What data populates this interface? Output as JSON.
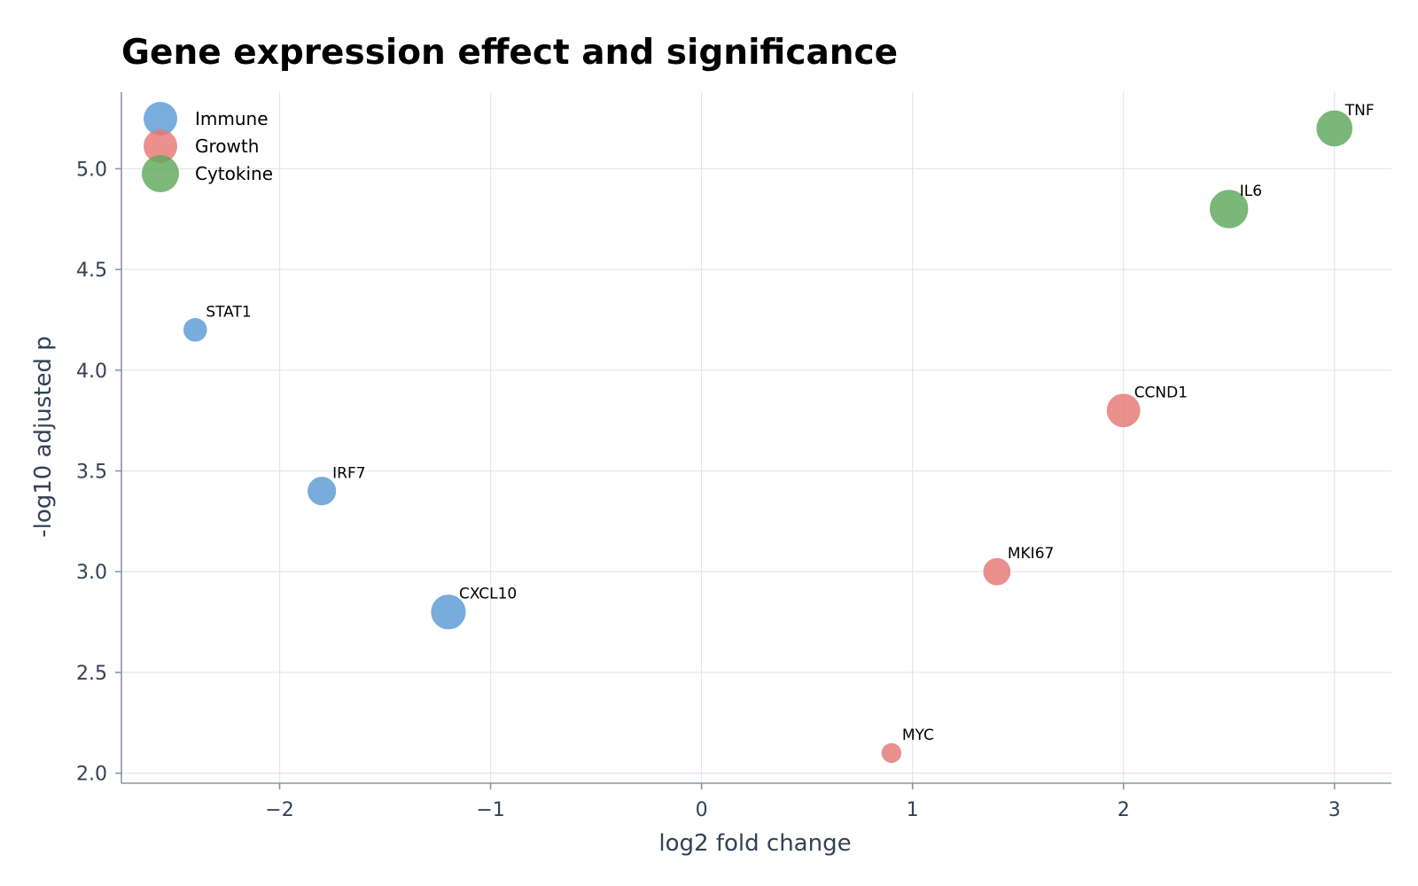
{
  "chart_data": {
    "type": "scatter",
    "title": "Gene expression effect and significance",
    "xlabel": "log2 fold change",
    "ylabel": "-log10 adjusted p",
    "xlim": [
      -2.75,
      3.27
    ],
    "ylim": [
      1.95,
      5.38
    ],
    "xticks": [
      -2,
      -1,
      0,
      1,
      2,
      3
    ],
    "xtick_labels": [
      "−2",
      "−1",
      "0",
      "1",
      "2",
      "3"
    ],
    "yticks": [
      2.0,
      2.5,
      3.0,
      3.5,
      4.0,
      4.5,
      5.0
    ],
    "ytick_labels": [
      "2.0",
      "2.5",
      "3.0",
      "3.5",
      "4.0",
      "4.5",
      "5.0"
    ],
    "grid": true,
    "legend_position": "top-left",
    "series": [
      {
        "name": "Immune",
        "color": "#5b9bd5",
        "points": [
          {
            "label": "STAT1",
            "x": -2.4,
            "y": 4.2,
            "size": 1.0
          },
          {
            "label": "IRF7",
            "x": -1.8,
            "y": 3.4,
            "size": 1.2
          },
          {
            "label": "CXCL10",
            "x": -1.2,
            "y": 2.8,
            "size": 1.45
          }
        ]
      },
      {
        "name": "Growth",
        "color": "#e67874",
        "points": [
          {
            "label": "MYC",
            "x": 0.9,
            "y": 2.1,
            "size": 0.85
          },
          {
            "label": "MKI67",
            "x": 1.4,
            "y": 3.0,
            "size": 1.15
          },
          {
            "label": "CCND1",
            "x": 2.0,
            "y": 3.8,
            "size": 1.4
          }
        ]
      },
      {
        "name": "Cytokine",
        "color": "#5fa85c",
        "points": [
          {
            "label": "IL6",
            "x": 2.5,
            "y": 4.8,
            "size": 1.6
          },
          {
            "label": "TNF",
            "x": 3.0,
            "y": 5.2,
            "size": 1.5
          }
        ]
      }
    ]
  }
}
